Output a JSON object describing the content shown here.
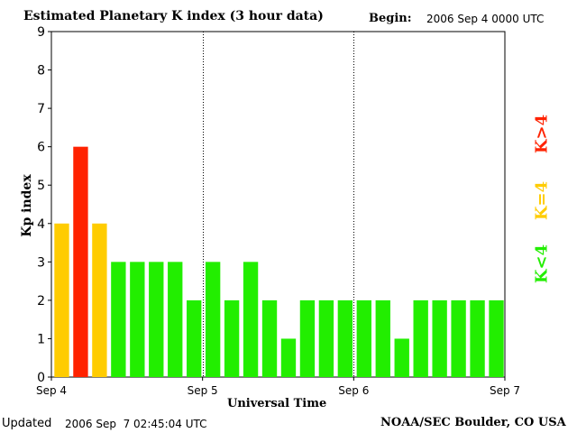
{
  "header": {
    "title": "Estimated Planetary K index (3 hour data)",
    "begin_label": "Begin:",
    "begin_value": "2006 Sep 4 0000 UTC"
  },
  "footer": {
    "updated_label": "Updated",
    "updated_value": "2006 Sep  7 02:45:04 UTC",
    "source": "NOAA/SEC Boulder, CO USA"
  },
  "legend": {
    "greater": "K>4",
    "equal": "K=4",
    "less": "K<4"
  },
  "colors": {
    "k_less_4": "#22ee00",
    "k_equal_4": "#ffcc00",
    "k_greater_4": "#ff2200",
    "axis": "#000000"
  },
  "chart_data": {
    "type": "bar",
    "title": "Estimated Planetary K index (3 hour data)",
    "xlabel": "Universal Time",
    "ylabel": "Kp index",
    "ylim": [
      0,
      9
    ],
    "yticks": [
      0,
      1,
      2,
      3,
      4,
      5,
      6,
      7,
      8,
      9
    ],
    "xticks": [
      "Sep 4",
      "Sep 5",
      "Sep 6",
      "Sep 7"
    ],
    "grid": false,
    "day_separators": "dotted",
    "legend_placement": "right",
    "values": [
      4,
      6,
      4,
      3,
      3,
      3,
      3,
      2,
      3,
      2,
      3,
      2,
      1,
      2,
      2,
      2,
      2,
      2,
      1,
      2,
      2,
      2,
      2,
      2
    ]
  }
}
